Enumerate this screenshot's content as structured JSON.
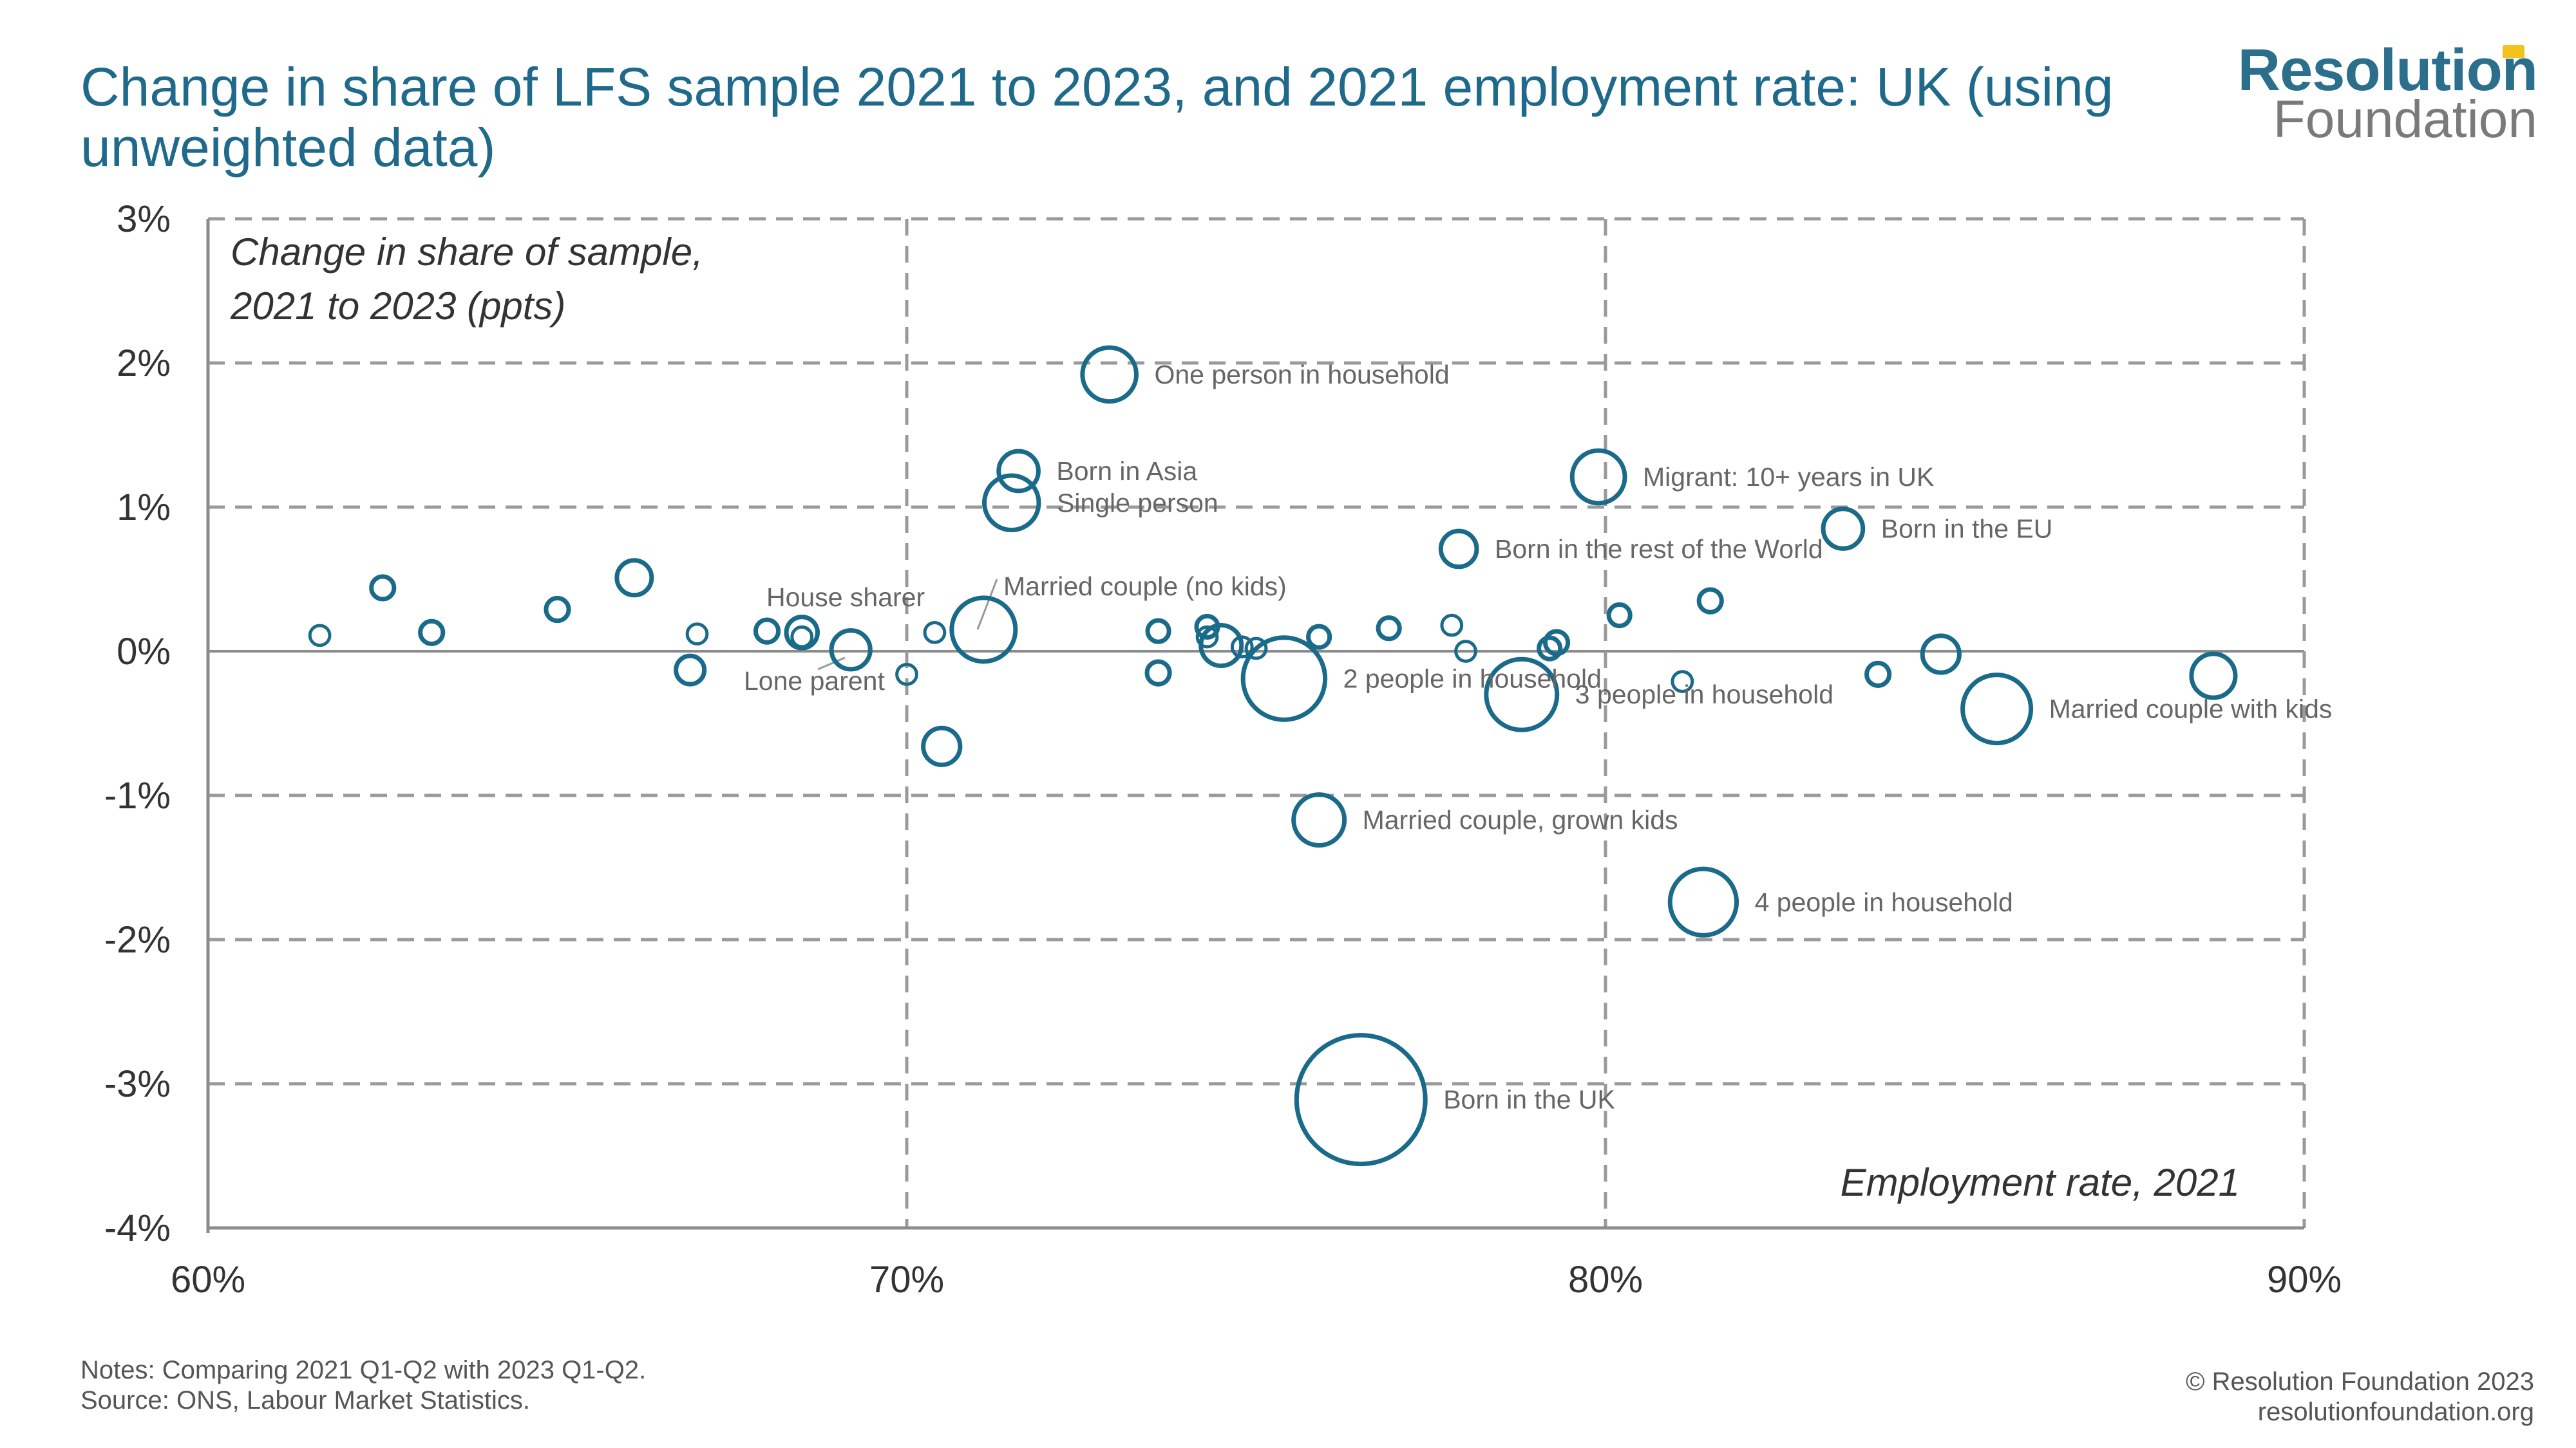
{
  "header": {
    "title": "Change in share of LFS sample 2021 to 2023, and 2021 employment rate: UK (using unweighted data)",
    "logo_line1": "Resolution",
    "logo_line2": "Foundation"
  },
  "footer": {
    "notes": "Notes: Comparing 2021 Q1-Q2 with 2023 Q1-Q2.",
    "source": "Source: ONS, Labour Market Statistics.",
    "copyright": "© Resolution Foundation 2023",
    "website": "resolutionfoundation.org"
  },
  "colors": {
    "series": "#1a6a8a",
    "grid": "#9a9a9a",
    "label": "#666666",
    "title": "#1f6a8b",
    "logo_accent": "#f4c21d"
  },
  "chart_data": {
    "type": "scatter",
    "bubble": true,
    "title": "Change in share of LFS sample 2021 to 2023, and 2021 employment rate: UK (using unweighted data)",
    "xlabel": "Employment rate, 2021",
    "ylabel_line1": "Change in share of sample,",
    "ylabel_line2": "2021 to 2023 (ppts)",
    "xlim": [
      60,
      90
    ],
    "ylim": [
      -4,
      3
    ],
    "xticks": [
      60,
      70,
      80,
      90
    ],
    "yticks": [
      3,
      2,
      1,
      0,
      -1,
      -2,
      -3,
      -4
    ],
    "xtick_labels": [
      "60%",
      "70%",
      "80%",
      "90%"
    ],
    "ytick_labels": [
      "3%",
      "2%",
      "1%",
      "0%",
      "-1%",
      "-2%",
      "-3%",
      "-4%"
    ],
    "grid": true,
    "points": [
      {
        "x": 72.9,
        "y": 1.92,
        "size": 3.5,
        "label": "One person in household"
      },
      {
        "x": 71.6,
        "y": 1.25,
        "size": 1.5,
        "label": "Born in Asia"
      },
      {
        "x": 71.5,
        "y": 1.03,
        "size": 3.6,
        "label": "Single person"
      },
      {
        "x": 79.9,
        "y": 1.21,
        "size": 3.3,
        "label": "Migrant: 10+ years in UK"
      },
      {
        "x": 83.4,
        "y": 0.85,
        "size": 1.5,
        "label": "Born in the EU"
      },
      {
        "x": 77.9,
        "y": 0.71,
        "size": 1.1,
        "label": "Born in the rest of the World"
      },
      {
        "x": 68.5,
        "y": 0.13,
        "size": 0.7,
        "label": "House sharer"
      },
      {
        "x": 71.1,
        "y": 0.15,
        "size": 5.4,
        "label": "Married couple (no kids)"
      },
      {
        "x": 69.2,
        "y": 0.01,
        "size": 1.4,
        "label": "Lone parent"
      },
      {
        "x": 75.4,
        "y": -0.19,
        "size": 10.0,
        "label": "2 people in household"
      },
      {
        "x": 78.8,
        "y": -0.3,
        "size": 7.0,
        "label": "3 people in household"
      },
      {
        "x": 85.6,
        "y": -0.4,
        "size": 6.4,
        "label": "Married couple with kids"
      },
      {
        "x": 75.9,
        "y": -1.17,
        "size": 3.0,
        "label": "Married couple, grown kids"
      },
      {
        "x": 81.4,
        "y": -1.74,
        "size": 6.0,
        "label": "4 people in household"
      },
      {
        "x": 76.5,
        "y": -3.11,
        "size": 28.0,
        "label": "Born in the UK"
      },
      {
        "x": 61.6,
        "y": 0.11,
        "size": 0.1
      },
      {
        "x": 62.5,
        "y": 0.44,
        "size": 0.2
      },
      {
        "x": 63.2,
        "y": 0.13,
        "size": 0.2
      },
      {
        "x": 65.0,
        "y": 0.29,
        "size": 0.2
      },
      {
        "x": 66.1,
        "y": 0.51,
        "size": 1.0
      },
      {
        "x": 67.0,
        "y": 0.12,
        "size": 0.1
      },
      {
        "x": 66.9,
        "y": -0.13,
        "size": 0.5
      },
      {
        "x": 68.0,
        "y": 0.14,
        "size": 0.2
      },
      {
        "x": 68.5,
        "y": 0.1,
        "size": 0.1
      },
      {
        "x": 70.0,
        "y": -0.16,
        "size": 0.1
      },
      {
        "x": 70.4,
        "y": 0.13,
        "size": 0.1
      },
      {
        "x": 70.5,
        "y": -0.66,
        "size": 1.2
      },
      {
        "x": 73.6,
        "y": 0.14,
        "size": 0.15
      },
      {
        "x": 73.6,
        "y": -0.15,
        "size": 0.2
      },
      {
        "x": 74.3,
        "y": 0.17,
        "size": 0.15
      },
      {
        "x": 74.3,
        "y": 0.1,
        "size": 0.1
      },
      {
        "x": 74.5,
        "y": 0.04,
        "size": 1.6
      },
      {
        "x": 74.8,
        "y": 0.03,
        "size": 0.1
      },
      {
        "x": 75.0,
        "y": 0.02,
        "size": 0.1
      },
      {
        "x": 75.9,
        "y": 0.1,
        "size": 0.15
      },
      {
        "x": 76.9,
        "y": 0.16,
        "size": 0.15
      },
      {
        "x": 77.8,
        "y": 0.18,
        "size": 0.1
      },
      {
        "x": 78.0,
        "y": 0.0,
        "size": 0.1
      },
      {
        "x": 79.2,
        "y": 0.02,
        "size": 0.15
      },
      {
        "x": 79.3,
        "y": 0.06,
        "size": 0.2
      },
      {
        "x": 80.2,
        "y": 0.25,
        "size": 0.15
      },
      {
        "x": 81.1,
        "y": -0.21,
        "size": 0.1
      },
      {
        "x": 81.5,
        "y": 0.35,
        "size": 0.2
      },
      {
        "x": 83.9,
        "y": -0.16,
        "size": 0.2
      },
      {
        "x": 84.8,
        "y": -0.02,
        "size": 1.2
      },
      {
        "x": 88.7,
        "y": -0.17,
        "size": 2.0
      }
    ]
  }
}
